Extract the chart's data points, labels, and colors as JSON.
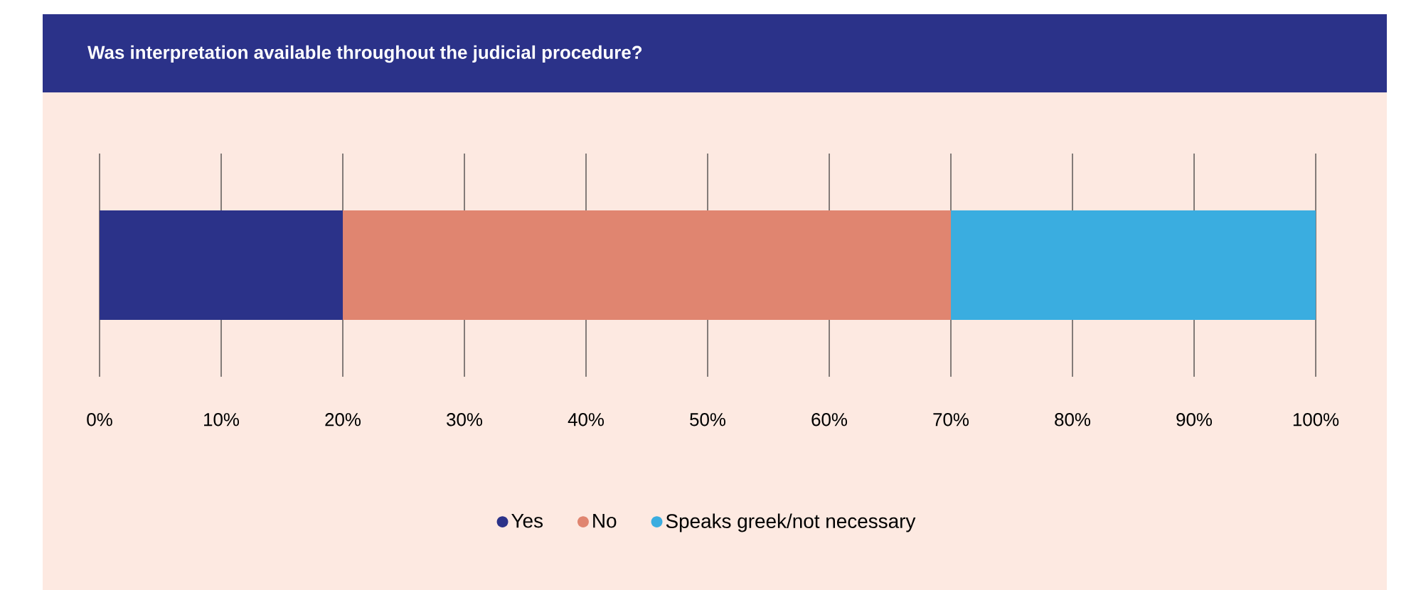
{
  "chart_data": {
    "type": "bar",
    "orientation": "horizontal",
    "stacked": true,
    "title": "Was interpretation available throughout the judicial procedure?",
    "categories": [
      null
    ],
    "series": [
      {
        "name": "Yes",
        "color": "#2b3289",
        "values": [
          20
        ]
      },
      {
        "name": "No",
        "color": "#e08570",
        "values": [
          50
        ]
      },
      {
        "name": "Speaks greek/not necessary",
        "color": "#3aade0",
        "values": [
          30
        ]
      }
    ],
    "xlim": [
      0,
      100
    ],
    "xticks": [
      {
        "value": 0,
        "label": "0%"
      },
      {
        "value": 10,
        "label": "10%"
      },
      {
        "value": 20,
        "label": "20%"
      },
      {
        "value": 30,
        "label": "30%"
      },
      {
        "value": 40,
        "label": "40%"
      },
      {
        "value": 50,
        "label": "50%"
      },
      {
        "value": 60,
        "label": "60%"
      },
      {
        "value": 70,
        "label": "70%"
      },
      {
        "value": 80,
        "label": "80%"
      },
      {
        "value": 90,
        "label": "90%"
      },
      {
        "value": 100,
        "label": "100%"
      }
    ],
    "grid": "x",
    "legend": "bottom"
  }
}
